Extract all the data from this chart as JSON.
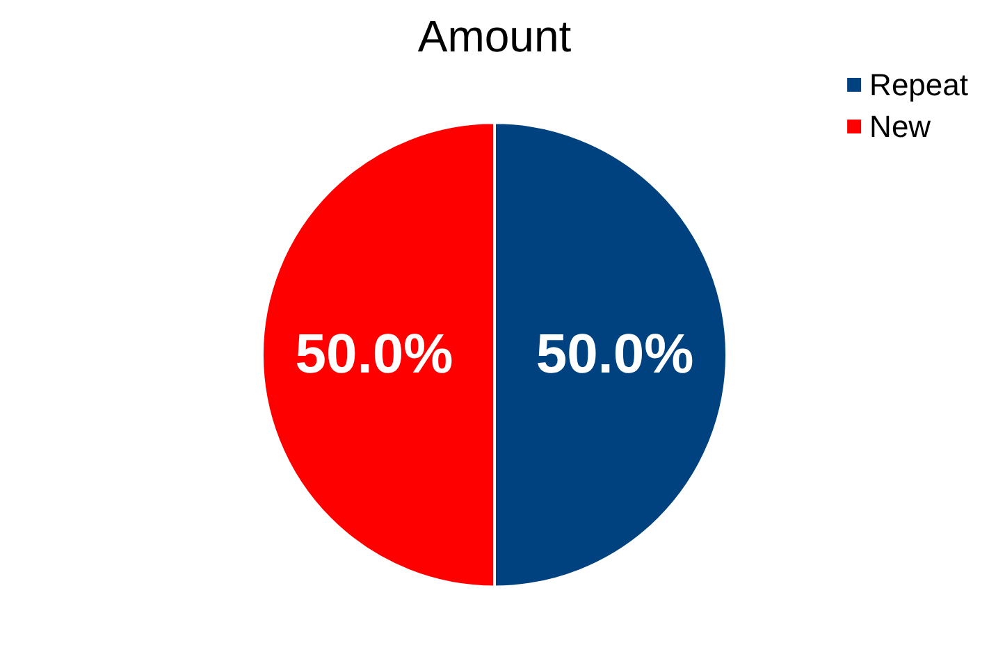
{
  "chart_data": {
    "type": "pie",
    "title": "Amount",
    "categories": [
      "Repeat",
      "New"
    ],
    "values": [
      50,
      50
    ],
    "colors": [
      "#00427f",
      "#ff0000"
    ],
    "value_labels": [
      "50.0%",
      "50.0%"
    ],
    "legend": "top right"
  }
}
